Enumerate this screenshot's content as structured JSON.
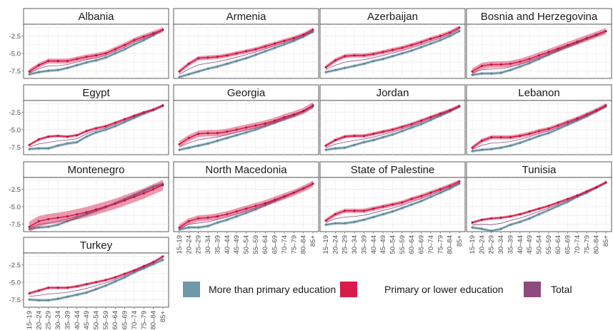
{
  "chart_data": {
    "type": "line",
    "layout": "facet-grid-4-columns",
    "x_categories": [
      "15–19",
      "20–24",
      "25–29",
      "30–34",
      "35–39",
      "40–44",
      "45–49",
      "50–54",
      "55–59",
      "60–64",
      "65–69",
      "70–74",
      "75–79",
      "80–84",
      "85+"
    ],
    "y_ticks": [
      -2.5,
      -5.0,
      -7.5
    ],
    "y_tick_labels": [
      "-2.5",
      "-5.0",
      "-7.5"
    ],
    "ylim": [
      -8.6,
      -0.8
    ],
    "grid": true,
    "legend_position": "bottom-right",
    "series_info": [
      {
        "name": "More than primary education",
        "color": "#6f98aa"
      },
      {
        "name": "Primary or lower education",
        "color": "#d81b4a"
      },
      {
        "name": "Total",
        "color": "#8e4c7e"
      }
    ],
    "panels": [
      {
        "title": "Albania",
        "more": [
          -8.0,
          -7.7,
          -7.5,
          -7.4,
          -7.1,
          -6.7,
          -6.3,
          -6.0,
          -5.6,
          -5.0,
          -4.4,
          -3.7,
          -3.1,
          -2.4,
          -1.6
        ],
        "primary": [
          -7.6,
          -6.7,
          -6.1,
          -6.1,
          -6.1,
          -5.8,
          -5.5,
          -5.3,
          -5.0,
          -4.4,
          -3.8,
          -3.1,
          -2.6,
          -2.1,
          -1.6
        ],
        "primary_band": 0.35
      },
      {
        "title": "Armenia",
        "more": [
          -8.4,
          -8.0,
          -7.6,
          -7.2,
          -6.9,
          -6.5,
          -6.1,
          -5.7,
          -5.2,
          -4.7,
          -4.2,
          -3.7,
          -3.2,
          -2.6,
          -1.9
        ],
        "primary": [
          -7.6,
          -6.5,
          -5.7,
          -5.6,
          -5.5,
          -5.3,
          -5.0,
          -4.7,
          -4.4,
          -4.0,
          -3.6,
          -3.2,
          -2.8,
          -2.3,
          -1.6
        ],
        "primary_band": 0.3
      },
      {
        "title": "Azerbaijan",
        "more": [
          -7.7,
          -7.4,
          -7.1,
          -6.8,
          -6.5,
          -6.1,
          -5.8,
          -5.4,
          -5.0,
          -4.6,
          -4.1,
          -3.6,
          -3.1,
          -2.5,
          -1.8
        ],
        "primary": [
          -7.0,
          -6.0,
          -5.4,
          -5.3,
          -5.3,
          -5.1,
          -4.8,
          -4.5,
          -4.2,
          -3.8,
          -3.4,
          -2.9,
          -2.5,
          -2.0,
          -1.3
        ],
        "primary_band": 0.3
      },
      {
        "title": "Bosnia and Herzegovina",
        "more": [
          -8.1,
          -7.9,
          -7.9,
          -7.8,
          -7.4,
          -6.9,
          -6.4,
          -5.8,
          -5.2,
          -4.6,
          -4.0,
          -3.5,
          -2.9,
          -2.4,
          -1.8
        ],
        "primary": [
          -7.6,
          -6.8,
          -6.6,
          -6.6,
          -6.5,
          -6.2,
          -5.8,
          -5.3,
          -4.8,
          -4.3,
          -3.8,
          -3.3,
          -2.8,
          -2.3,
          -1.8
        ],
        "primary_band": 0.45
      },
      {
        "title": "Egypt",
        "more": [
          -7.8,
          -7.7,
          -7.7,
          -7.3,
          -7.0,
          -6.8,
          -6.0,
          -5.4,
          -5.0,
          -4.5,
          -3.9,
          -3.3,
          -2.7,
          -2.2,
          -1.6
        ],
        "primary": [
          -7.2,
          -6.4,
          -6.0,
          -5.9,
          -6.0,
          -5.8,
          -5.2,
          -4.8,
          -4.5,
          -4.0,
          -3.5,
          -3.0,
          -2.5,
          -2.1,
          -1.5
        ],
        "primary_band": 0.2
      },
      {
        "title": "Georgia",
        "more": [
          -7.9,
          -7.6,
          -7.3,
          -7.0,
          -6.6,
          -6.2,
          -5.8,
          -5.4,
          -5.0,
          -4.5,
          -4.0,
          -3.5,
          -3.0,
          -2.4,
          -1.7
        ],
        "primary": [
          -7.1,
          -6.2,
          -5.6,
          -5.5,
          -5.5,
          -5.3,
          -5.0,
          -4.7,
          -4.4,
          -4.1,
          -3.7,
          -3.2,
          -2.8,
          -2.3,
          -1.5
        ],
        "primary_band": 0.45
      },
      {
        "title": "Jordan",
        "more": [
          -7.9,
          -7.7,
          -7.6,
          -7.2,
          -6.8,
          -6.5,
          -6.1,
          -5.7,
          -5.2,
          -4.7,
          -4.2,
          -3.6,
          -3.0,
          -2.4,
          -1.7
        ],
        "primary": [
          -7.3,
          -6.5,
          -6.0,
          -5.9,
          -5.9,
          -5.6,
          -5.3,
          -5.0,
          -4.6,
          -4.2,
          -3.7,
          -3.2,
          -2.7,
          -2.2,
          -1.6
        ],
        "primary_band": 0.25
      },
      {
        "title": "Lebanon",
        "more": [
          -8.1,
          -7.9,
          -7.8,
          -7.6,
          -7.3,
          -6.9,
          -6.4,
          -5.9,
          -5.5,
          -4.9,
          -4.3,
          -3.7,
          -3.1,
          -2.4,
          -1.7
        ],
        "primary": [
          -7.6,
          -6.6,
          -6.1,
          -6.1,
          -6.1,
          -5.9,
          -5.6,
          -5.2,
          -4.9,
          -4.4,
          -3.9,
          -3.4,
          -2.8,
          -2.2,
          -1.5
        ],
        "primary_band": 0.3
      },
      {
        "title": "Montenegro",
        "more": [
          -8.2,
          -8.0,
          -7.9,
          -7.6,
          -7.1,
          -6.6,
          -6.1,
          -5.6,
          -5.1,
          -4.5,
          -3.9,
          -3.3,
          -2.7,
          -2.1,
          -1.7
        ],
        "primary": [
          -7.9,
          -7.1,
          -6.8,
          -6.6,
          -6.4,
          -6.1,
          -5.8,
          -5.4,
          -5.0,
          -4.6,
          -4.1,
          -3.6,
          -3.1,
          -2.5,
          -1.9
        ],
        "primary_band": 0.75
      },
      {
        "title": "North Macedonia",
        "more": [
          -8.3,
          -8.0,
          -8.0,
          -7.8,
          -7.3,
          -6.9,
          -6.4,
          -5.9,
          -5.4,
          -4.8,
          -4.2,
          -3.6,
          -3.0,
          -2.4,
          -1.7
        ],
        "primary": [
          -8.0,
          -7.1,
          -6.7,
          -6.6,
          -6.4,
          -6.1,
          -5.7,
          -5.3,
          -4.9,
          -4.5,
          -4.0,
          -3.5,
          -3.0,
          -2.4,
          -1.7
        ],
        "primary_band": 0.45
      },
      {
        "title": "State of Palestine",
        "more": [
          -7.6,
          -7.4,
          -7.4,
          -7.2,
          -6.9,
          -6.5,
          -6.1,
          -5.7,
          -5.2,
          -4.7,
          -4.2,
          -3.6,
          -3.0,
          -2.4,
          -1.7
        ],
        "primary": [
          -7.0,
          -6.1,
          -5.6,
          -5.6,
          -5.6,
          -5.3,
          -5.0,
          -4.7,
          -4.4,
          -3.9,
          -3.5,
          -3.0,
          -2.5,
          -2.0,
          -1.4
        ],
        "primary_band": 0.3
      },
      {
        "title": "Tunisia",
        "more": [
          -8.0,
          -8.2,
          -8.5,
          -8.2,
          -7.6,
          -7.2,
          -6.7,
          -6.1,
          -5.5,
          -4.9,
          -4.3,
          -3.6,
          -3.0,
          -2.3,
          -1.6
        ],
        "primary": [
          -7.3,
          -6.9,
          -6.7,
          -6.6,
          -6.4,
          -6.1,
          -5.7,
          -5.3,
          -4.9,
          -4.4,
          -3.9,
          -3.4,
          -2.8,
          -2.2,
          -1.5
        ],
        "primary_band": 0.2
      },
      {
        "title": "Turkey",
        "more": [
          -7.5,
          -7.6,
          -7.6,
          -7.4,
          -7.1,
          -6.8,
          -6.5,
          -6.0,
          -5.5,
          -4.9,
          -4.3,
          -3.6,
          -3.0,
          -2.4,
          -1.8
        ],
        "primary": [
          -6.6,
          -6.2,
          -5.8,
          -5.8,
          -5.8,
          -5.6,
          -5.3,
          -5.0,
          -4.7,
          -4.3,
          -3.8,
          -3.3,
          -2.7,
          -2.1,
          -1.3
        ],
        "primary_band": 0.2
      }
    ]
  }
}
